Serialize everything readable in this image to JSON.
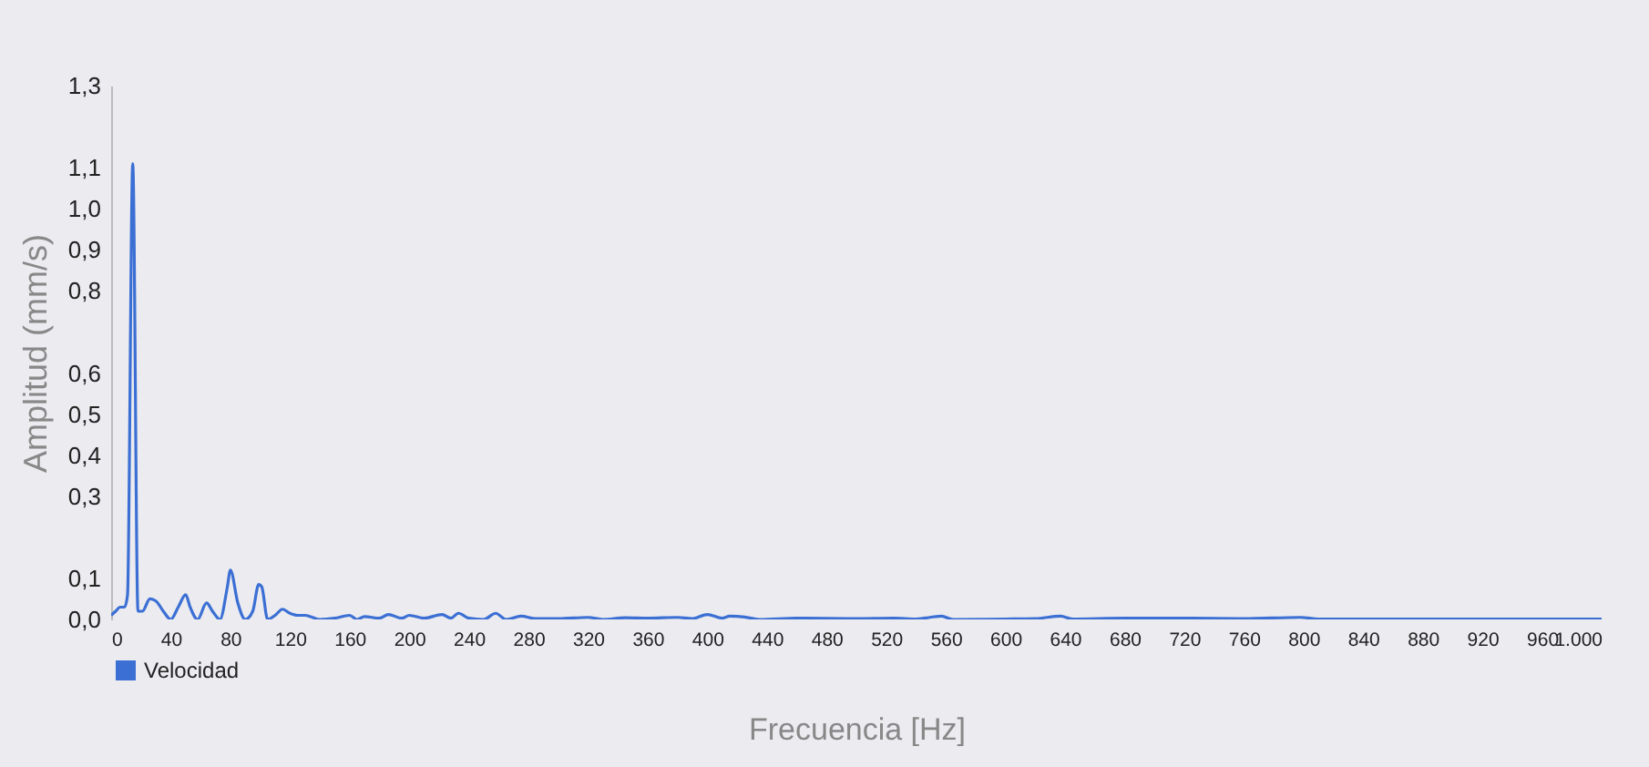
{
  "chart_data": {
    "type": "line",
    "xlabel": "Frecuencia [Hz]",
    "ylabel": "Amplitud (mm/s)",
    "x": [
      0,
      3,
      6,
      9,
      11,
      14.5,
      18,
      21,
      26,
      30,
      35,
      40,
      45,
      50,
      53,
      58,
      64,
      68,
      73,
      78,
      80,
      85,
      90,
      95,
      99,
      101,
      105,
      110,
      115,
      120,
      125,
      130,
      135,
      140,
      150,
      160,
      165,
      170,
      180,
      186,
      195,
      200,
      210,
      222,
      228,
      233,
      240,
      250,
      258,
      265,
      275,
      285,
      300,
      320,
      330,
      345,
      360,
      380,
      390,
      400,
      410,
      415,
      425,
      435,
      460,
      500,
      525,
      540,
      557,
      565,
      600,
      620,
      637,
      645,
      680,
      720,
      760,
      798,
      810,
      850,
      900,
      1000
    ],
    "series": [
      {
        "name": "Velocidad",
        "color": "#3b6fd4",
        "values": [
          0.01,
          0.02,
          0.03,
          0.03,
          0.06,
          1.11,
          0.02,
          0.02,
          0.05,
          0.045,
          0.02,
          0.0,
          0.03,
          0.06,
          0.03,
          0.0,
          0.04,
          0.02,
          0.0,
          0.08,
          0.12,
          0.04,
          0.0,
          0.02,
          0.085,
          0.08,
          0.0,
          0.01,
          0.025,
          0.015,
          0.01,
          0.01,
          0.005,
          0.0,
          0.003,
          0.01,
          0.0,
          0.007,
          0.003,
          0.012,
          0.003,
          0.01,
          0.003,
          0.012,
          0.003,
          0.015,
          0.003,
          0.0,
          0.015,
          0.0,
          0.008,
          0.002,
          0.002,
          0.005,
          0.0,
          0.004,
          0.003,
          0.005,
          0.002,
          0.012,
          0.003,
          0.008,
          0.006,
          0.0,
          0.003,
          0.002,
          0.003,
          0.001,
          0.008,
          0.0,
          0.001,
          0.002,
          0.008,
          0.001,
          0.003,
          0.003,
          0.002,
          0.005,
          0.001,
          0.001,
          0.001,
          0.001
        ]
      }
    ],
    "xlim": [
      0,
      1000
    ],
    "xticks": [
      0,
      40,
      80,
      120,
      160,
      200,
      240,
      280,
      320,
      360,
      400,
      440,
      480,
      520,
      560,
      600,
      640,
      680,
      720,
      760,
      800,
      840,
      880,
      920,
      960,
      {
        "value": 1000,
        "label": "1.000"
      }
    ],
    "ylim": [
      0,
      1.3
    ],
    "yticks": [
      {
        "value": 0,
        "label": "0,0"
      },
      {
        "value": 0.1,
        "label": "0,1"
      },
      {
        "value": 0.3,
        "label": "0,3"
      },
      {
        "value": 0.4,
        "label": "0,4"
      },
      {
        "value": 0.5,
        "label": "0,5"
      },
      {
        "value": 0.6,
        "label": "0,6"
      },
      {
        "value": 0.8,
        "label": "0,8"
      },
      {
        "value": 0.9,
        "label": "0,9"
      },
      {
        "value": 1.0,
        "label": "1,0"
      },
      {
        "value": 1.1,
        "label": "1,1"
      },
      {
        "value": 1.3,
        "label": "1,3"
      }
    ],
    "legend": "bottom",
    "grid": false
  }
}
